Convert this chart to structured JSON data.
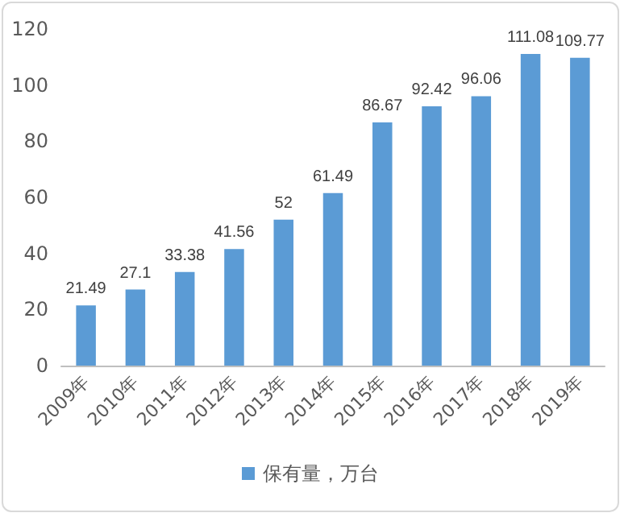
{
  "chart_data": {
    "type": "bar",
    "categories": [
      "2009年",
      "2010年",
      "2011年",
      "2012年",
      "2013年",
      "2014年",
      "2015年",
      "2016年",
      "2017年",
      "2018年",
      "2019年"
    ],
    "series": [
      {
        "name": "保有量，万台",
        "color": "#5b9bd5",
        "values": [
          21.49,
          27.1,
          33.38,
          41.56,
          52,
          61.49,
          86.67,
          92.42,
          96.06,
          111.08,
          109.77
        ]
      }
    ],
    "ylim": [
      0,
      120
    ],
    "yticks": [
      0,
      20,
      40,
      60,
      80,
      100,
      120
    ],
    "grid": false,
    "legend": "bottom",
    "data_labels": true
  }
}
